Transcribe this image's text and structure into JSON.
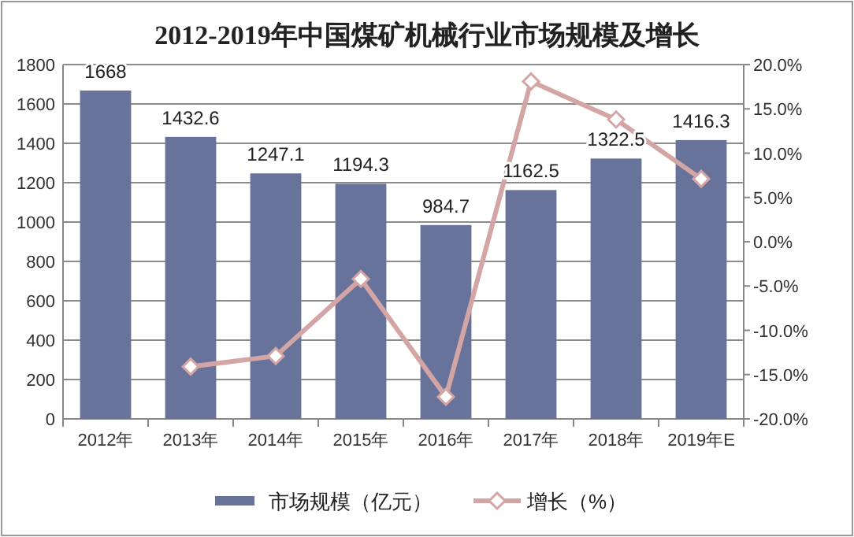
{
  "chart_data": {
    "type": "bar",
    "title": "2012-2019年中国煤矿机械行业市场规模及增长",
    "categories": [
      "2012年",
      "2013年",
      "2014年",
      "2015年",
      "2016年",
      "2017年",
      "2018年",
      "2019年E"
    ],
    "series": [
      {
        "name": "市场规模（亿元）",
        "color": "#67739a",
        "values": [
          1668,
          1432.6,
          1247.1,
          1194.3,
          984.7,
          1162.5,
          1322.5,
          1416.3
        ],
        "value_labels": [
          "1668",
          "1432.6",
          "1247.1",
          "1194.3",
          "984.7",
          "1162.5",
          "1322.5",
          "1416.3"
        ]
      },
      {
        "name": "增长（%）",
        "type": "line",
        "axis": "y2",
        "color": "#d4a5a5",
        "marker": "diamond",
        "values": [
          null,
          -14.1,
          -12.9,
          -4.2,
          -17.5,
          18.1,
          13.8,
          7.1
        ]
      }
    ],
    "ylim": [
      0,
      1800
    ],
    "yticks": [
      0,
      200,
      400,
      600,
      800,
      1000,
      1200,
      1400,
      1600,
      1800
    ],
    "y2lim": [
      -20,
      20
    ],
    "y2ticks": [
      {
        "value": -20,
        "label": "-20.0%"
      },
      {
        "value": -15,
        "label": "-15.0%"
      },
      {
        "value": -10,
        "label": "-10.0%"
      },
      {
        "value": -5,
        "label": "-5.0%"
      },
      {
        "value": 0,
        "label": "0.0%"
      },
      {
        "value": 5,
        "label": "5.0%"
      },
      {
        "value": 10,
        "label": "10.0%"
      },
      {
        "value": 15,
        "label": "15.0%"
      },
      {
        "value": 20,
        "label": "20.0%"
      }
    ],
    "grid": "y",
    "legend": "bottom"
  }
}
